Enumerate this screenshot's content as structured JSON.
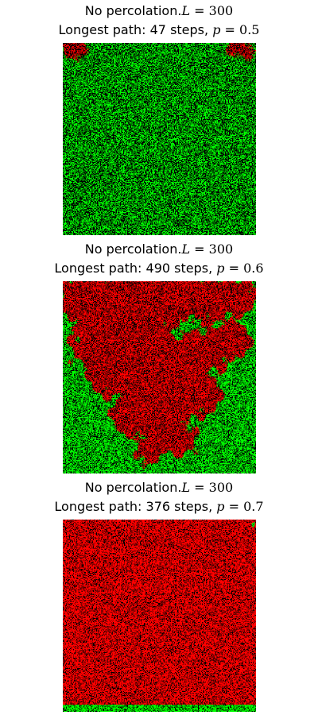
{
  "colors": {
    "occupied_unreached": "#00ff00",
    "reached": "#ff0000",
    "empty": "#000000"
  },
  "chart_data": [
    {
      "type": "heatmap",
      "title_line1": {
        "prefix": "No percolation.",
        "var": "L",
        "eq": " = ",
        "value": "300"
      },
      "title_line2": {
        "prefix": "Longest path: 47 steps, ",
        "var": "p",
        "eq": " = ",
        "value": "0.5"
      },
      "L": 300,
      "p": 0.5,
      "longest_path_steps": 47,
      "percolation": false,
      "cluster_seeds": [
        [
          0.05,
          0.02,
          0.06
        ],
        [
          0.08,
          0.03,
          0.04
        ],
        [
          0.9,
          0.02,
          0.05
        ],
        [
          0.95,
          0.04,
          0.04
        ]
      ],
      "seed": 11
    },
    {
      "type": "heatmap",
      "title_line1": {
        "prefix": "No percolation.",
        "var": "L",
        "eq": " = ",
        "value": "300"
      },
      "title_line2": {
        "prefix": "Longest path: 490 steps, ",
        "var": "p",
        "eq": " = ",
        "value": "0.6"
      },
      "L": 300,
      "p": 0.6,
      "longest_path_steps": 490,
      "percolation": false,
      "cluster_seeds": [
        [
          0.1,
          0.07,
          0.13
        ],
        [
          0.22,
          0.15,
          0.16
        ],
        [
          0.35,
          0.08,
          0.14
        ],
        [
          0.5,
          0.12,
          0.15
        ],
        [
          0.62,
          0.06,
          0.12
        ],
        [
          0.78,
          0.1,
          0.12
        ],
        [
          0.9,
          0.08,
          0.1
        ],
        [
          0.18,
          0.32,
          0.14
        ],
        [
          0.33,
          0.3,
          0.16
        ],
        [
          0.45,
          0.38,
          0.15
        ],
        [
          0.6,
          0.42,
          0.14
        ],
        [
          0.75,
          0.36,
          0.12
        ],
        [
          0.88,
          0.3,
          0.09
        ],
        [
          0.25,
          0.48,
          0.12
        ],
        [
          0.42,
          0.56,
          0.14
        ],
        [
          0.55,
          0.62,
          0.13
        ],
        [
          0.7,
          0.58,
          0.12
        ],
        [
          0.35,
          0.7,
          0.1
        ],
        [
          0.5,
          0.76,
          0.11
        ],
        [
          0.6,
          0.82,
          0.09
        ],
        [
          0.45,
          0.88,
          0.07
        ]
      ],
      "seed": 23
    },
    {
      "type": "heatmap",
      "title_line1": {
        "prefix": "No percolation.",
        "var": "L",
        "eq": " = ",
        "value": "300"
      },
      "title_line2": {
        "prefix": "Longest path: 376 steps, ",
        "var": "p",
        "eq": " = ",
        "value": "0.7"
      },
      "L": 300,
      "p": 0.7,
      "longest_path_steps": 376,
      "percolation": false,
      "cluster_seeds": [
        [
          0.5,
          0.45,
          0.75
        ],
        [
          0.2,
          0.2,
          0.35
        ],
        [
          0.8,
          0.2,
          0.35
        ],
        [
          0.2,
          0.75,
          0.3
        ],
        [
          0.8,
          0.75,
          0.3
        ]
      ],
      "bottom_green_band": true,
      "seed": 37
    }
  ]
}
